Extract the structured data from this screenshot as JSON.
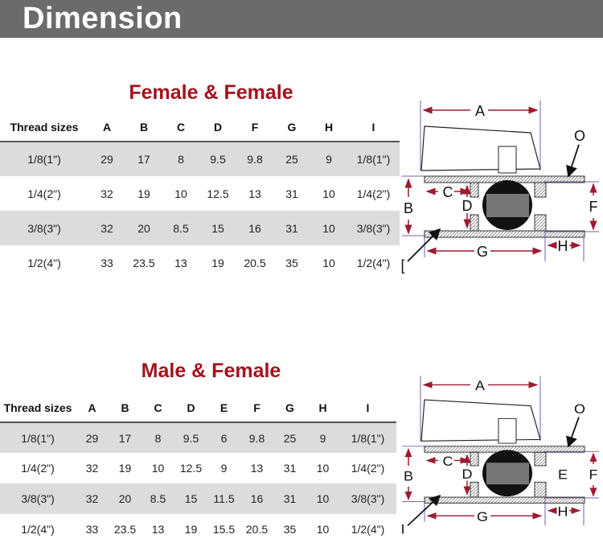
{
  "header": {
    "title": "Dimension"
  },
  "sections": [
    {
      "title": "Female & Female",
      "columns": [
        "Thread sizes",
        "A",
        "B",
        "C",
        "D",
        "F",
        "G",
        "H",
        "I"
      ],
      "rows": [
        [
          "1/8(1\")",
          "29",
          "17",
          "8",
          "9.5",
          "9.8",
          "25",
          "9",
          "1/8(1\")"
        ],
        [
          "1/4(2\")",
          "32",
          "19",
          "10",
          "12.5",
          "13",
          "31",
          "10",
          "1/4(2\")"
        ],
        [
          "3/8(3\")",
          "32",
          "20",
          "8.5",
          "15",
          "16",
          "31",
          "10",
          "3/8(3\")"
        ],
        [
          "1/2(4\")",
          "33",
          "23.5",
          "13",
          "19",
          "20.5",
          "35",
          "10",
          "1/2(4\")"
        ]
      ],
      "diagram_labels": {
        "A": "A",
        "B": "B",
        "C": "C",
        "D": "D",
        "E": "",
        "F": "F",
        "G": "G",
        "H": "H",
        "I": "[",
        "O": "O"
      }
    },
    {
      "title": "Male & Female",
      "columns": [
        "Thread sizes",
        "A",
        "B",
        "C",
        "D",
        "E",
        "F",
        "G",
        "H",
        "I"
      ],
      "rows": [
        [
          "1/8(1\")",
          "29",
          "17",
          "8",
          "9.5",
          "6",
          "9.8",
          "25",
          "9",
          "1/8(1\")"
        ],
        [
          "1/4(2\")",
          "32",
          "19",
          "10",
          "12.5",
          "9",
          "13",
          "31",
          "10",
          "1/4(2\")"
        ],
        [
          "3/8(3\")",
          "32",
          "20",
          "8.5",
          "15",
          "11.5",
          "16",
          "31",
          "10",
          "3/8(3\")"
        ],
        [
          "1/2(4\")",
          "33",
          "23.5",
          "13",
          "19",
          "15.5",
          "20.5",
          "35",
          "10",
          "1/2(4\")"
        ]
      ],
      "diagram_labels": {
        "A": "A",
        "B": "B",
        "C": "C",
        "D": "D",
        "E": "E",
        "F": "F",
        "G": "G",
        "H": "H",
        "I": "I",
        "O": "O"
      }
    }
  ],
  "colors": {
    "header_bg": "#6d6a6a",
    "title_red": "#a3121d",
    "row_shade": "#dcdcdc",
    "dim_arrow": "#9b1b30",
    "dim_line": "#7a5ca8"
  }
}
